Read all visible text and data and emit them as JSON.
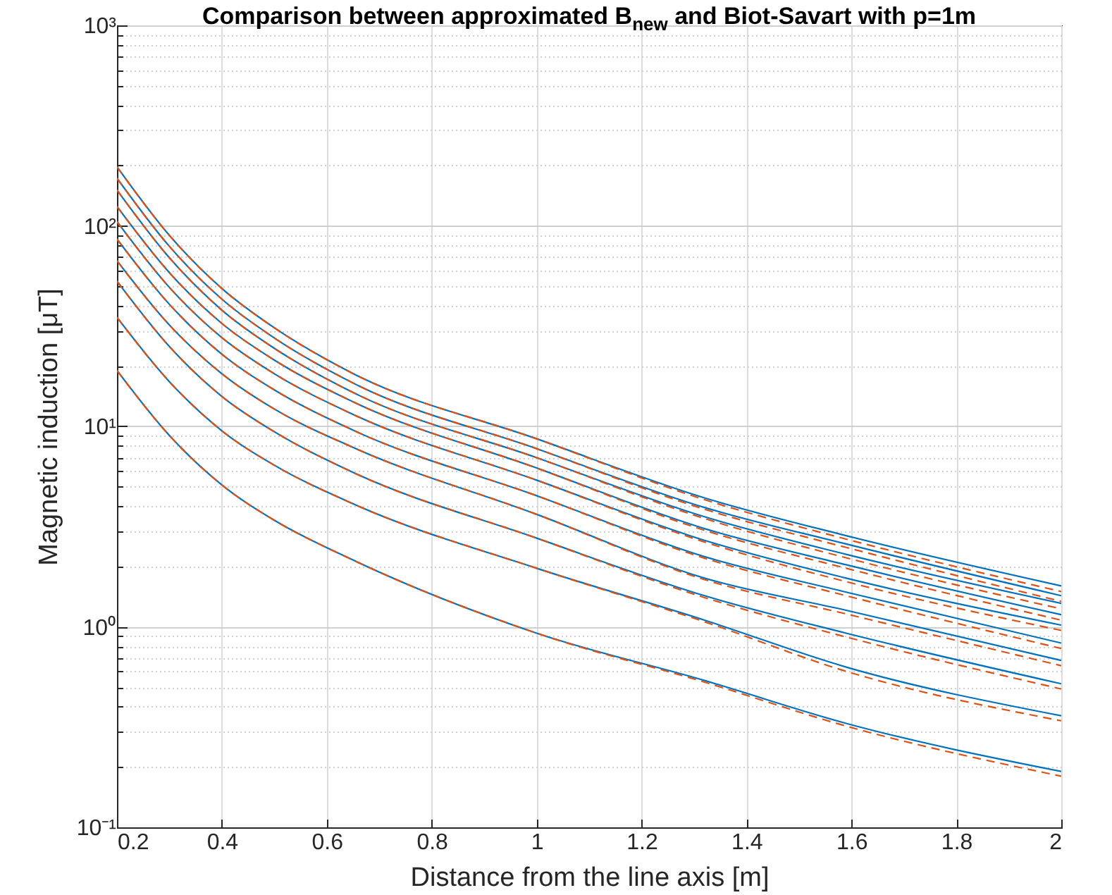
{
  "chart_data": {
    "type": "line",
    "title": "Comparison between approximated B$_{new}$ and Biot-Savart with p=1m",
    "xlabel": "Distance from the line axis [m]",
    "ylabel": "Magnetic induction [μT]",
    "log": "y",
    "grid": true,
    "marker": "none",
    "x": [
      0.2,
      0.3,
      0.4,
      0.5,
      0.649,
      1.0,
      1.32,
      1.59,
      2.0
    ],
    "xlim": [
      0.2,
      2
    ],
    "xticks": [
      0.2,
      0.4,
      0.6,
      0.8,
      1,
      1.2,
      1.4,
      1.6,
      1.8,
      2
    ],
    "ylim": [
      0.1,
      1000
    ],
    "yticks": [
      {
        "value": 0.1,
        "label": "10⁻¹"
      },
      {
        "value": 0.2,
        "label": null
      },
      {
        "value": 0.3,
        "label": null
      },
      {
        "value": 0.4,
        "label": null
      },
      {
        "value": 0.5,
        "label": null
      },
      {
        "value": 0.6,
        "label": null
      },
      {
        "value": 0.7,
        "label": null
      },
      {
        "value": 0.8,
        "label": null
      },
      {
        "value": 0.9,
        "label": null
      },
      {
        "value": 1,
        "label": "10⁰"
      },
      {
        "value": 2,
        "label": null
      },
      {
        "value": 3,
        "label": null
      },
      {
        "value": 4,
        "label": null
      },
      {
        "value": 5,
        "label": null
      },
      {
        "value": 6,
        "label": null
      },
      {
        "value": 7,
        "label": null
      },
      {
        "value": 8,
        "label": null
      },
      {
        "value": 9,
        "label": null
      },
      {
        "value": 10,
        "label": "10¹"
      },
      {
        "value": 20,
        "label": null
      },
      {
        "value": 30,
        "label": null
      },
      {
        "value": 40,
        "label": null
      },
      {
        "value": 50,
        "label": null
      },
      {
        "value": 60,
        "label": null
      },
      {
        "value": 70,
        "label": null
      },
      {
        "value": 80,
        "label": null
      },
      {
        "value": 90,
        "label": null
      },
      {
        "value": 100,
        "label": "10²"
      },
      {
        "value": 200,
        "label": null
      },
      {
        "value": 300,
        "label": null
      },
      {
        "value": 400,
        "label": null
      },
      {
        "value": 500,
        "label": null
      },
      {
        "value": 600,
        "label": null
      },
      {
        "value": 700,
        "label": null
      },
      {
        "value": 800,
        "label": null
      },
      {
        "value": 900,
        "label": null
      },
      {
        "value": 1000,
        "label": "10³"
      }
    ],
    "series": [
      {
        "color": "#0072bd",
        "line_style": "solid",
        "values": [
          197,
          89.6,
          48.7,
          31.0,
          18.4,
          8.67,
          4.4,
          2.85,
          1.6
        ]
      },
      {
        "color": "#0072bd",
        "line_style": "solid",
        "values": [
          173,
          79.0,
          43.1,
          27.6,
          16.5,
          7.74,
          3.94,
          2.59,
          1.43
        ]
      },
      {
        "color": "#0072bd",
        "line_style": "solid",
        "values": [
          151,
          69.3,
          38.0,
          24.5,
          14.8,
          6.98,
          3.54,
          2.3,
          1.31
        ]
      },
      {
        "color": "#0072bd",
        "line_style": "solid",
        "values": [
          125,
          58.4,
          32.6,
          21.4,
          13.3,
          6.2,
          3.09,
          2.04,
          1.15
        ]
      },
      {
        "color": "#0072bd",
        "line_style": "solid",
        "values": [
          105,
          49.3,
          27.7,
          18.3,
          11.5,
          5.39,
          2.7,
          1.75,
          1.02
        ]
      },
      {
        "color": "#0072bd",
        "line_style": "solid",
        "values": [
          86,
          40.6,
          22.9,
          15.2,
          9.6,
          4.51,
          2.24,
          1.49,
          0.83
        ]
      },
      {
        "color": "#0072bd",
        "line_style": "solid",
        "values": [
          67,
          32.0,
          18.3,
          12.2,
          7.87,
          3.64,
          1.75,
          1.21,
          0.68
        ]
      },
      {
        "color": "#0072bd",
        "line_style": "solid",
        "values": [
          53,
          25.0,
          14.1,
          9.4,
          5.91,
          2.77,
          1.43,
          0.93,
          0.52
        ]
      },
      {
        "color": "#0072bd",
        "line_style": "solid",
        "values": [
          35,
          16.7,
          9.5,
          6.4,
          4.12,
          1.96,
          1.08,
          0.63,
          0.36
        ]
      },
      {
        "color": "#0072bd",
        "line_style": "solid",
        "values": [
          19,
          9.0,
          5.1,
          3.4,
          2.16,
          0.93,
          0.54,
          0.33,
          0.19
        ]
      },
      {
        "color": "#d95319",
        "line_style": "dashed",
        "values": [
          197,
          89.6,
          48.7,
          31.0,
          18.4,
          8.67,
          4.31,
          2.74,
          1.5
        ]
      },
      {
        "color": "#d95319",
        "line_style": "dashed",
        "values": [
          173,
          79.0,
          43.1,
          27.6,
          16.5,
          7.74,
          3.86,
          2.49,
          1.34
        ]
      },
      {
        "color": "#d95319",
        "line_style": "dashed",
        "values": [
          151,
          69.3,
          38.0,
          24.5,
          14.8,
          6.98,
          3.47,
          2.21,
          1.23
        ]
      },
      {
        "color": "#d95319",
        "line_style": "dashed",
        "values": [
          125,
          58.4,
          32.6,
          21.4,
          13.3,
          6.2,
          3.03,
          1.96,
          1.08
        ]
      },
      {
        "color": "#d95319",
        "line_style": "dashed",
        "values": [
          105,
          49.3,
          27.7,
          18.3,
          11.5,
          5.39,
          2.65,
          1.68,
          0.96
        ]
      },
      {
        "color": "#d95319",
        "line_style": "dashed",
        "values": [
          86,
          40.6,
          22.9,
          15.2,
          9.6,
          4.51,
          2.2,
          1.43,
          0.78
        ]
      },
      {
        "color": "#d95319",
        "line_style": "dashed",
        "values": [
          67,
          32.0,
          18.3,
          12.2,
          7.87,
          3.64,
          1.72,
          1.16,
          0.64
        ]
      },
      {
        "color": "#d95319",
        "line_style": "dashed",
        "values": [
          53,
          25.0,
          14.1,
          9.4,
          5.91,
          2.77,
          1.4,
          0.89,
          0.49
        ]
      },
      {
        "color": "#d95319",
        "line_style": "dashed",
        "values": [
          35,
          16.7,
          9.5,
          6.4,
          4.12,
          1.96,
          1.06,
          0.6,
          0.34
        ]
      },
      {
        "color": "#d95319",
        "line_style": "dashed",
        "values": [
          19,
          9.0,
          5.1,
          3.4,
          2.16,
          0.93,
          0.53,
          0.32,
          0.18
        ]
      }
    ]
  }
}
